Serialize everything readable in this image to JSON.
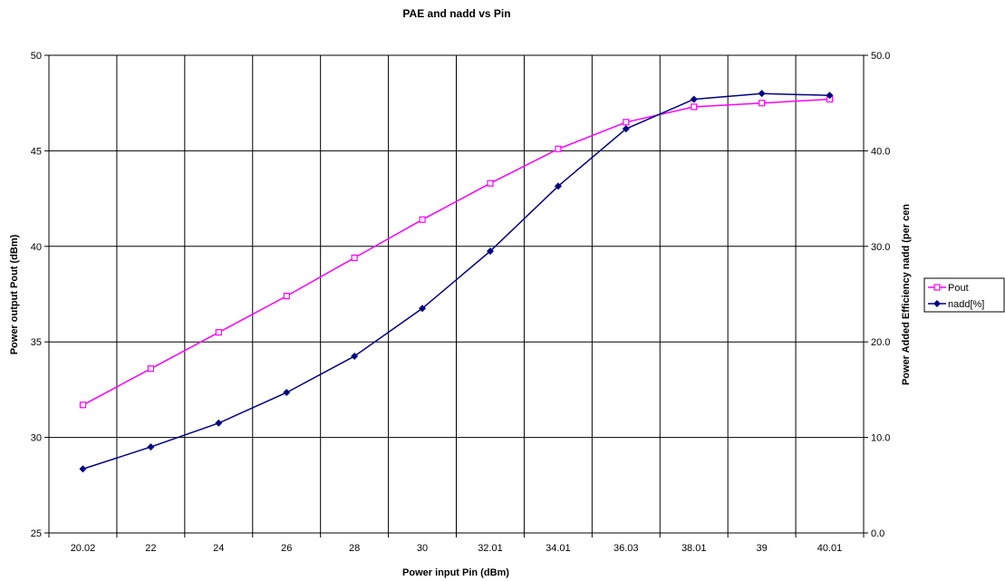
{
  "chart_data": {
    "type": "line",
    "title": "PAE and nadd vs Pin",
    "xlabel": "Power input Pin (dBm)",
    "ylabel": "Power output Pout (dBm)",
    "y2label": "Power Added Efficiency nadd (per cen",
    "categories": [
      "20.02",
      "22",
      "24",
      "26",
      "28",
      "30",
      "32.01",
      "34.01",
      "36.03",
      "38.01",
      "39",
      "40.01"
    ],
    "ylim": [
      25,
      50
    ],
    "yticks": [
      "25",
      "30",
      "35",
      "40",
      "45",
      "50"
    ],
    "y2lim": [
      0,
      50
    ],
    "y2ticks": [
      "0.0",
      "10.0",
      "20.0",
      "30.0",
      "40.0",
      "50.0"
    ],
    "grid": true,
    "legend_position": "right",
    "series": [
      {
        "name": "Pout",
        "axis": "left",
        "color": "#ff00ff",
        "marker": "square-open",
        "values": [
          31.7,
          33.6,
          35.5,
          37.4,
          39.4,
          41.4,
          43.3,
          45.1,
          46.5,
          47.3,
          47.5,
          47.7
        ]
      },
      {
        "name": "nadd[%]",
        "axis": "right",
        "color": "#000080",
        "marker": "diamond-filled",
        "values": [
          6.7,
          9.0,
          11.5,
          14.7,
          18.5,
          23.5,
          29.5,
          36.3,
          42.3,
          45.4,
          46.0,
          45.8
        ]
      }
    ]
  }
}
